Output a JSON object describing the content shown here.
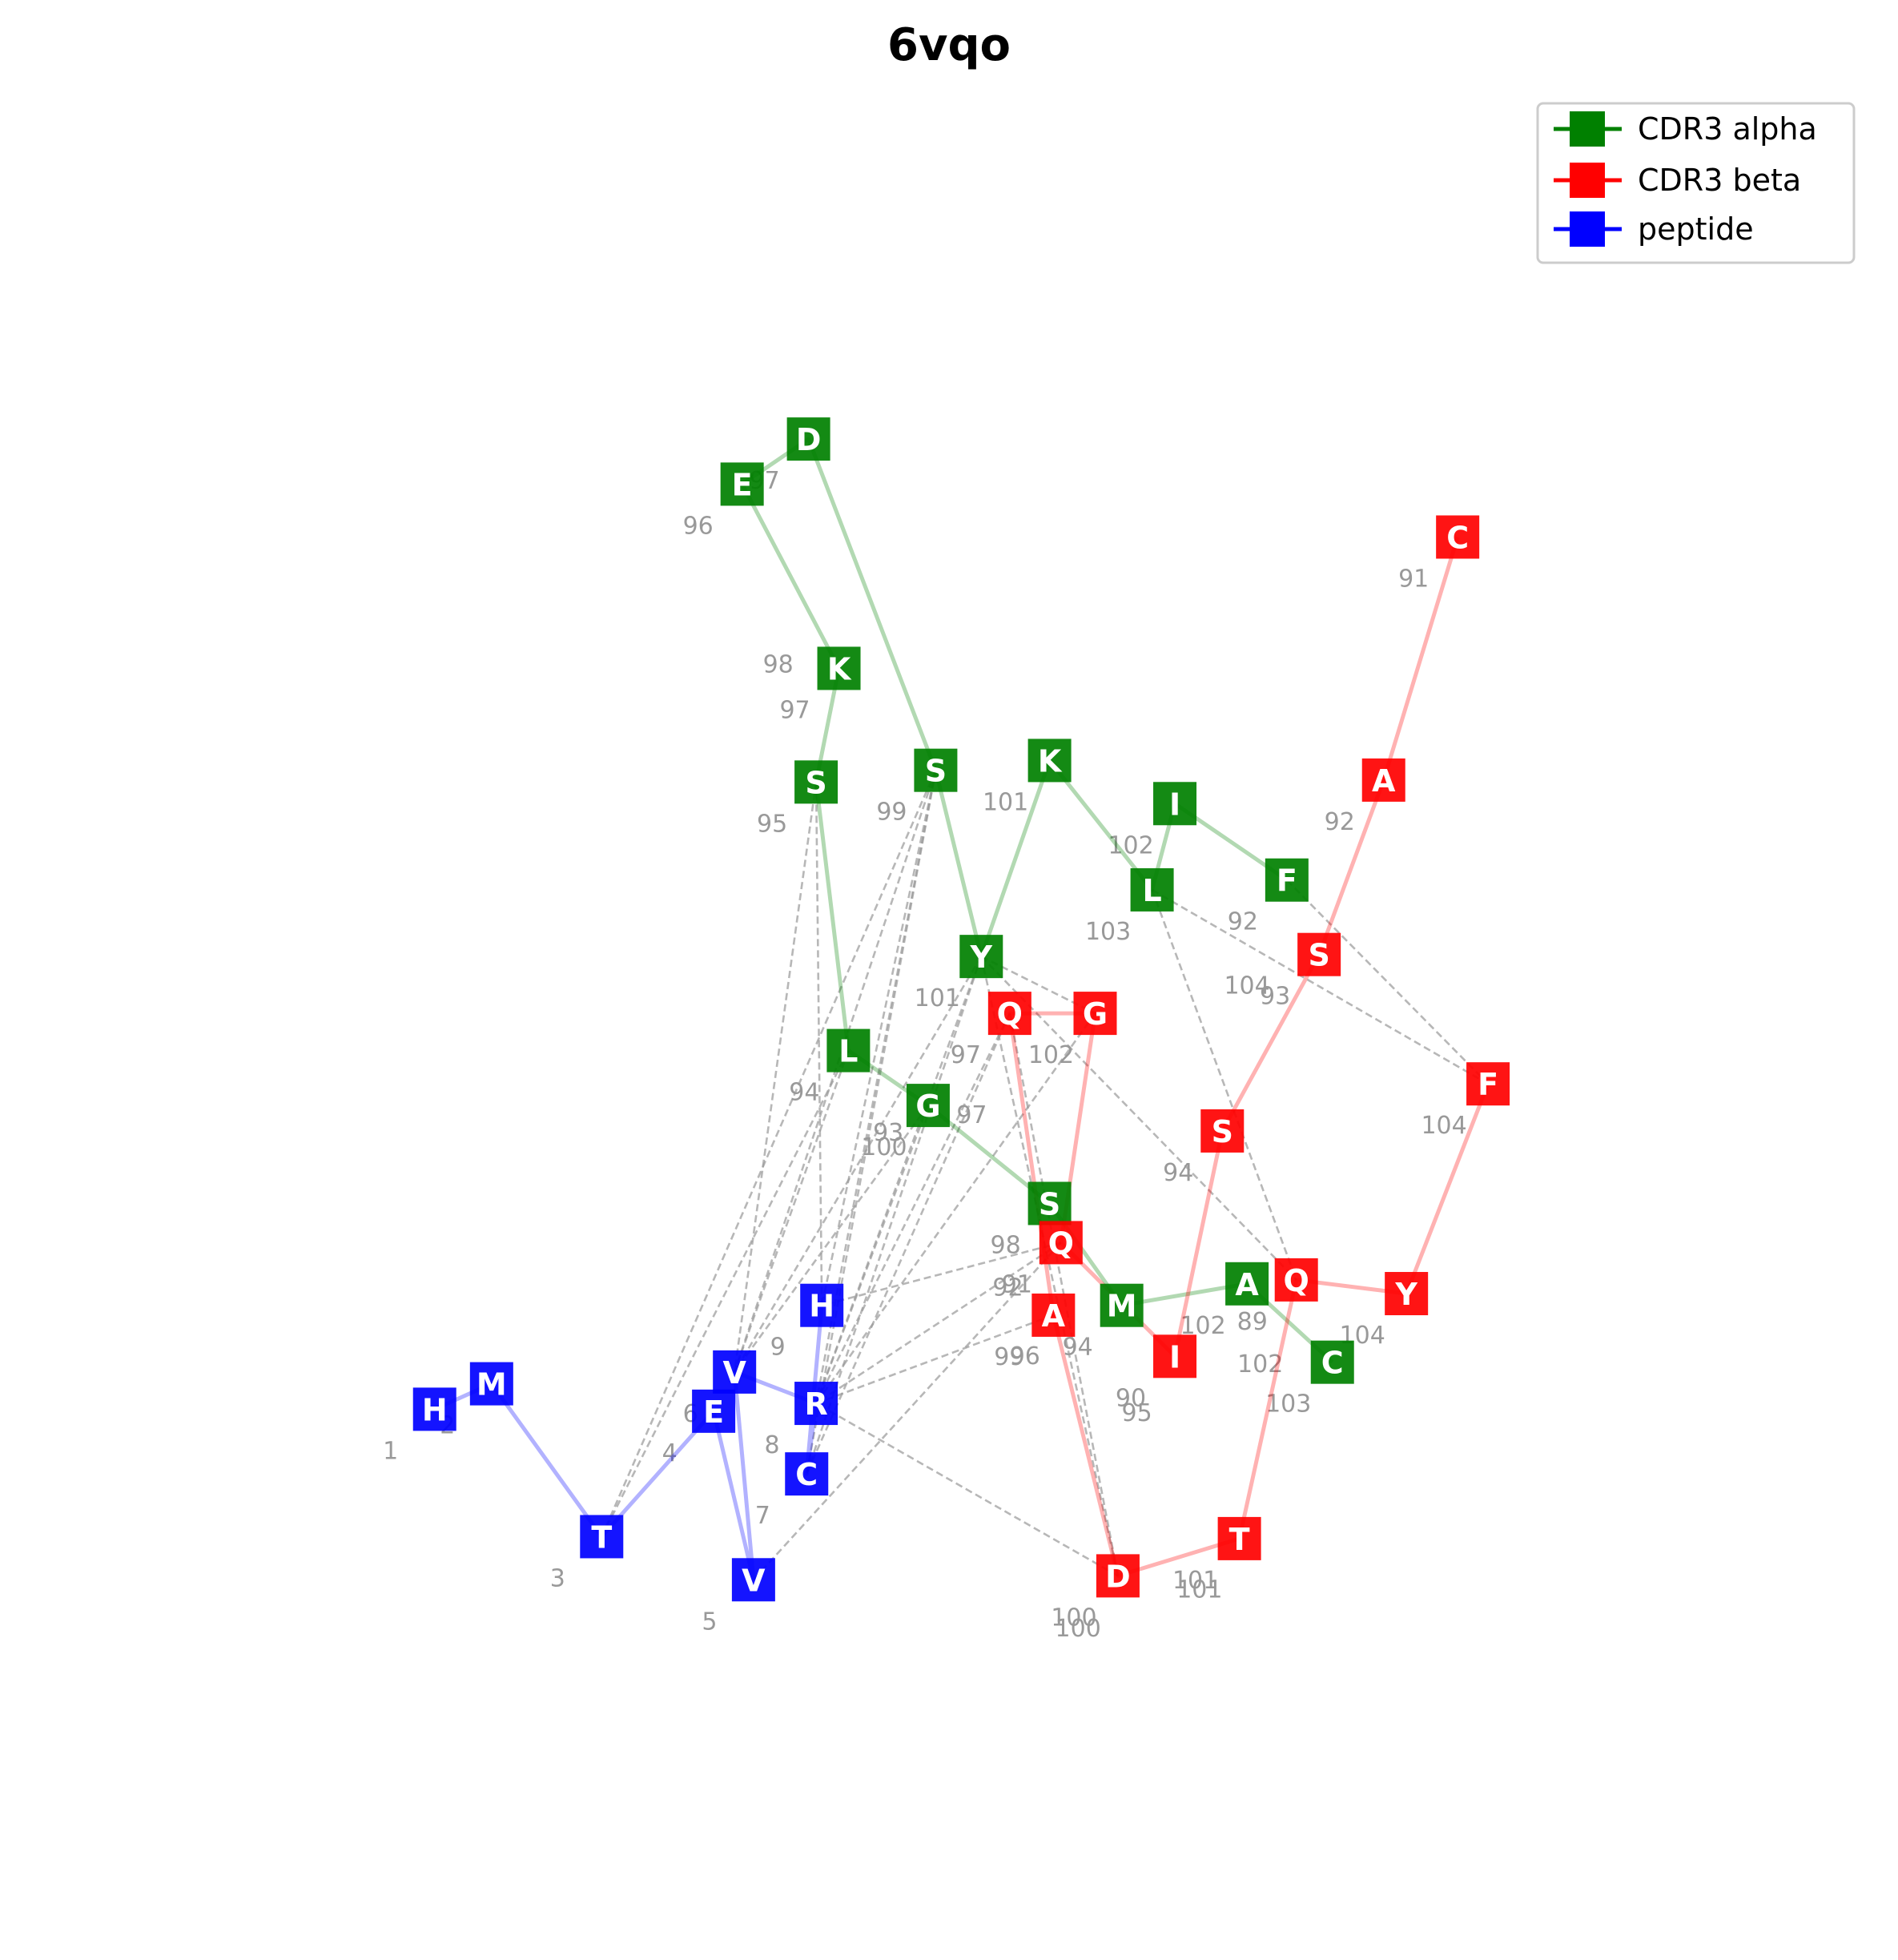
{
  "chart_data": {
    "type": "scatter",
    "title": "6vqo",
    "xlabel": "",
    "ylabel": "",
    "axes_visible": false,
    "grid": false,
    "xlim": [
      0,
      1000
    ],
    "ylim": [
      0,
      1000
    ],
    "legend": {
      "placement": "top-right",
      "entries": [
        {
          "key": "alpha",
          "label": "CDR3 alpha",
          "color": "#008000"
        },
        {
          "key": "beta",
          "label": "CDR3 beta",
          "color": "#ff0000"
        },
        {
          "key": "peptide",
          "label": "peptide",
          "color": "#0000ff"
        }
      ]
    },
    "colors": {
      "alpha": "#008000",
      "beta": "#ff0000",
      "peptide": "#0000ff",
      "contact": "#999999",
      "pos_label": "#999999"
    },
    "series": [
      {
        "name": "CDR3 alpha",
        "key": "alpha",
        "residues": [
          {
            "aa": "C",
            "pos": "103",
            "x": 702,
            "y": 305
          },
          {
            "aa": "A",
            "pos": "102",
            "x": 657,
            "y": 345
          },
          {
            "aa": "M",
            "pos": "94",
            "x": 591,
            "y": 334
          },
          {
            "aa": "S",
            "pos": "98",
            "x": 553,
            "y": 386
          },
          {
            "aa": "G",
            "pos": "100",
            "x": 489,
            "y": 436
          },
          {
            "aa": "L",
            "pos": "94",
            "x": 447,
            "y": 464
          },
          {
            "aa": "S",
            "pos": "95",
            "x": 430,
            "y": 601
          },
          {
            "aa": "K",
            "pos": "97",
            "x": 442,
            "y": 659
          },
          {
            "aa": "E",
            "pos": "96",
            "x": 391,
            "y": 753
          },
          {
            "aa": "D",
            "pos": "97",
            "x": 426,
            "y": 776
          },
          {
            "aa": "S",
            "pos": "99",
            "x": 493,
            "y": 607
          },
          {
            "aa": "Y",
            "pos": "101",
            "x": 517,
            "y": 512
          },
          {
            "aa": "K",
            "pos": "101",
            "x": 553,
            "y": 612
          },
          {
            "aa": "L",
            "pos": "103",
            "x": 607,
            "y": 546
          },
          {
            "aa": "I",
            "pos": "102",
            "x": 619,
            "y": 590
          },
          {
            "aa": "F",
            "pos": "92",
            "x": 678,
            "y": 551
          }
        ]
      },
      {
        "name": "CDR3 beta",
        "key": "beta",
        "residues": [
          {
            "aa": "C",
            "pos": "91",
            "x": 768,
            "y": 726
          },
          {
            "aa": "A",
            "pos": "92",
            "x": 729,
            "y": 602
          },
          {
            "aa": "S",
            "pos": "93",
            "x": 695,
            "y": 513
          },
          {
            "aa": "S",
            "pos": "94",
            "x": 644,
            "y": 423
          },
          {
            "aa": "I",
            "pos": "90",
            "x": 619,
            "y": 308
          },
          {
            "aa": "Q",
            "pos": "91",
            "x": 559,
            "y": 366
          },
          {
            "aa": "G",
            "pos": "102",
            "x": 577,
            "y": 483
          },
          {
            "aa": "Q",
            "pos": "97",
            "x": 532,
            "y": 483
          },
          {
            "aa": "A",
            "pos": "99",
            "x": 555,
            "y": 329
          },
          {
            "aa": "D",
            "pos": "100",
            "x": 589,
            "y": 196
          },
          {
            "aa": "T",
            "pos": "101",
            "x": 653,
            "y": 215
          },
          {
            "aa": "Q",
            "pos": "89",
            "x": 683,
            "y": 347
          },
          {
            "aa": "Y",
            "pos": "104",
            "x": 741,
            "y": 340
          },
          {
            "aa": "F",
            "pos": "104",
            "x": 784,
            "y": 447
          }
        ]
      },
      {
        "name": "peptide",
        "key": "peptide",
        "residues": [
          {
            "aa": "H",
            "pos": "1",
            "x": 229,
            "y": 281
          },
          {
            "aa": "M",
            "pos": "2",
            "x": 259,
            "y": 294
          },
          {
            "aa": "T",
            "pos": "3",
            "x": 317,
            "y": 216
          },
          {
            "aa": "E",
            "pos": "4",
            "x": 376,
            "y": 280
          },
          {
            "aa": "V",
            "pos": "5",
            "x": 397,
            "y": 194
          },
          {
            "aa": "V",
            "pos": "6",
            "x": 387,
            "y": 300
          },
          {
            "aa": "R",
            "pos": "8",
            "x": 430,
            "y": 284
          },
          {
            "aa": "C",
            "pos": "7",
            "x": 425,
            "y": 248
          },
          {
            "aa": "H",
            "pos": "9",
            "x": 433,
            "y": 334
          }
        ]
      }
    ],
    "extra_position_labels": [
      {
        "text": "93",
        "x": 468,
        "y": 418
      },
      {
        "text": "97",
        "x": 512,
        "y": 427
      },
      {
        "text": "92",
        "x": 531,
        "y": 339
      },
      {
        "text": "96",
        "x": 540,
        "y": 304
      },
      {
        "text": "95",
        "x": 599,
        "y": 275
      },
      {
        "text": "104",
        "x": 657,
        "y": 493
      },
      {
        "text": "102",
        "x": 664,
        "y": 300
      },
      {
        "text": "100",
        "x": 568,
        "y": 165
      },
      {
        "text": "101",
        "x": 632,
        "y": 185
      },
      {
        "text": "98",
        "x": 410,
        "y": 657
      }
    ],
    "contacts": [
      {
        "from": [
          "alpha",
          10
        ],
        "to": [
          "peptide",
          6
        ]
      },
      {
        "from": [
          "alpha",
          10
        ],
        "to": [
          "peptide",
          5
        ]
      },
      {
        "from": [
          "alpha",
          10
        ],
        "to": [
          "peptide",
          7
        ]
      },
      {
        "from": [
          "alpha",
          10
        ],
        "to": [
          "peptide",
          2
        ]
      },
      {
        "from": [
          "alpha",
          10
        ],
        "to": [
          "peptide",
          8
        ]
      },
      {
        "from": [
          "alpha",
          11
        ],
        "to": [
          "peptide",
          6
        ]
      },
      {
        "from": [
          "alpha",
          11
        ],
        "to": [
          "peptide",
          5
        ]
      },
      {
        "from": [
          "alpha",
          11
        ],
        "to": [
          "peptide",
          7
        ]
      },
      {
        "from": [
          "alpha",
          11
        ],
        "to": [
          "beta",
          9
        ]
      },
      {
        "from": [
          "alpha",
          11
        ],
        "to": [
          "beta",
          6
        ]
      },
      {
        "from": [
          "alpha",
          11
        ],
        "to": [
          "beta",
          11
        ]
      },
      {
        "from": [
          "alpha",
          5
        ],
        "to": [
          "peptide",
          5
        ]
      },
      {
        "from": [
          "alpha",
          5
        ],
        "to": [
          "peptide",
          2
        ]
      },
      {
        "from": [
          "alpha",
          6
        ],
        "to": [
          "peptide",
          8
        ]
      },
      {
        "from": [
          "alpha",
          6
        ],
        "to": [
          "peptide",
          5
        ]
      },
      {
        "from": [
          "alpha",
          4
        ],
        "to": [
          "peptide",
          6
        ]
      },
      {
        "from": [
          "alpha",
          13
        ],
        "to": [
          "beta",
          13
        ]
      },
      {
        "from": [
          "alpha",
          13
        ],
        "to": [
          "beta",
          11
        ]
      },
      {
        "from": [
          "alpha",
          15
        ],
        "to": [
          "beta",
          13
        ]
      },
      {
        "from": [
          "beta",
          7
        ],
        "to": [
          "peptide",
          6
        ]
      },
      {
        "from": [
          "beta",
          7
        ],
        "to": [
          "peptide",
          7
        ]
      },
      {
        "from": [
          "beta",
          6
        ],
        "to": [
          "peptide",
          6
        ]
      },
      {
        "from": [
          "beta",
          5
        ],
        "to": [
          "peptide",
          8
        ]
      },
      {
        "from": [
          "beta",
          5
        ],
        "to": [
          "peptide",
          6
        ]
      },
      {
        "from": [
          "beta",
          5
        ],
        "to": [
          "peptide",
          4
        ]
      },
      {
        "from": [
          "beta",
          8
        ],
        "to": [
          "peptide",
          6
        ]
      },
      {
        "from": [
          "beta",
          9
        ],
        "to": [
          "peptide",
          6
        ]
      },
      {
        "from": [
          "alpha",
          4
        ],
        "to": [
          "peptide",
          5
        ]
      },
      {
        "from": [
          "beta",
          7
        ],
        "to": [
          "beta",
          9
        ]
      }
    ]
  }
}
